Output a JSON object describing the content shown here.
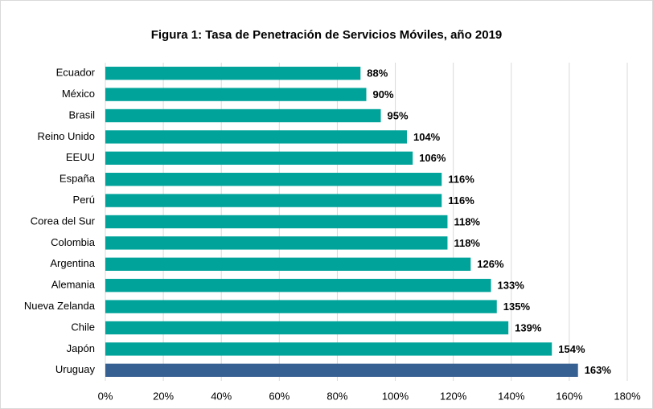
{
  "chart_data": {
    "type": "bar",
    "orientation": "horizontal",
    "title": "Figura 1: Tasa de Penetración de Servicios Móviles, año 2019",
    "categories": [
      "Ecuador",
      "México",
      "Brasil",
      "Reino Unido",
      "EEUU",
      "España",
      "Perú",
      "Corea del Sur",
      "Colombia",
      "Argentina",
      "Alemania",
      "Nueva Zelanda",
      "Chile",
      "Japón",
      "Uruguay"
    ],
    "values": [
      88,
      90,
      95,
      104,
      106,
      116,
      116,
      118,
      118,
      126,
      133,
      135,
      139,
      154,
      163
    ],
    "value_labels": [
      "88%",
      "90%",
      "95%",
      "104%",
      "106%",
      "116%",
      "116%",
      "118%",
      "118%",
      "126%",
      "133%",
      "135%",
      "139%",
      "154%",
      "163%"
    ],
    "colors": [
      "#00a39a",
      "#00a39a",
      "#00a39a",
      "#00a39a",
      "#00a39a",
      "#00a39a",
      "#00a39a",
      "#00a39a",
      "#00a39a",
      "#00a39a",
      "#00a39a",
      "#00a39a",
      "#00a39a",
      "#00a39a",
      "#376092"
    ],
    "xlim": [
      0,
      180
    ],
    "xticks": [
      {
        "value": 0,
        "label": "0%"
      },
      {
        "value": 20,
        "label": "20%"
      },
      {
        "value": 40,
        "label": "40%"
      },
      {
        "value": 60,
        "label": "60%"
      },
      {
        "value": 80,
        "label": "80%"
      },
      {
        "value": 100,
        "label": "100%"
      },
      {
        "value": 120,
        "label": "120%"
      },
      {
        "value": 140,
        "label": "140%"
      },
      {
        "value": 160,
        "label": "160%"
      },
      {
        "value": 180,
        "label": "180%"
      }
    ],
    "grid": true
  }
}
